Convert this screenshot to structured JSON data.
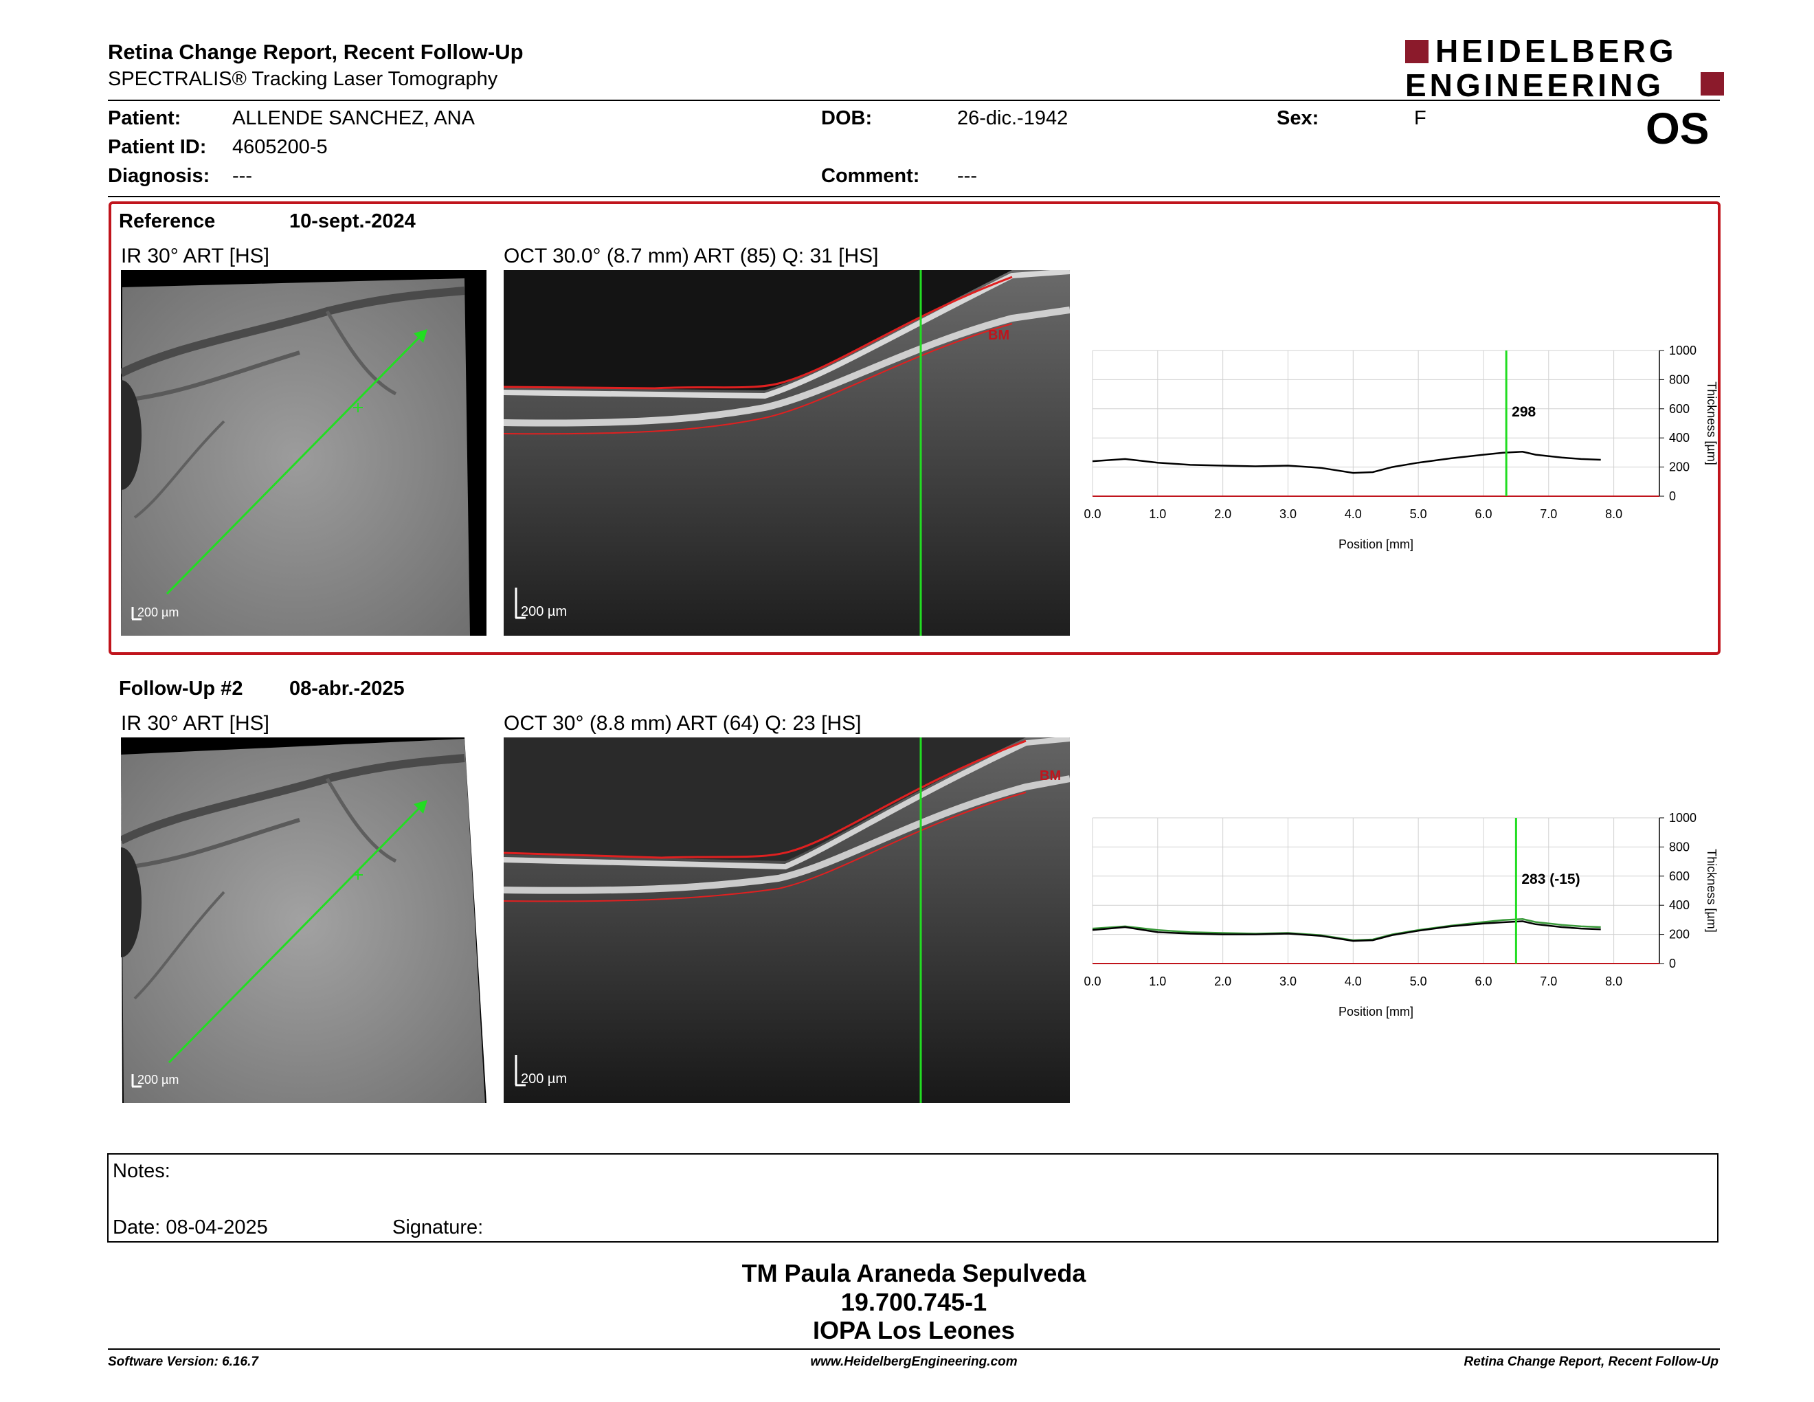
{
  "header": {
    "title": "Retina Change Report, Recent Follow-Up",
    "subtitle": "SPECTRALIS® Tracking Laser Tomography",
    "logo_line1": "HEIDELBERG",
    "logo_line2": "ENGINEERING",
    "eye": "OS"
  },
  "patient": {
    "patient_label": "Patient:",
    "patient_value": "ALLENDE SANCHEZ, ANA",
    "id_label": "Patient ID:",
    "id_value": "4605200-5",
    "diagnosis_label": "Diagnosis:",
    "diagnosis_value": "---",
    "dob_label": "DOB:",
    "dob_value": "26-dic.-1942",
    "comment_label": "Comment:",
    "comment_value": "---",
    "sex_label": "Sex:",
    "sex_value": "F"
  },
  "reference": {
    "label": "Reference",
    "date": "10-sept.-2024",
    "ir_caption": "IR 30° ART [HS]",
    "oct_caption": "OCT 30.0° (8.7 mm) ART (85) Q: 31 [HS]",
    "scale_ir": "200 µm",
    "scale_oct": "200 µm",
    "bm_label": "BM",
    "cursor_value": "298"
  },
  "followup": {
    "label": "Follow-Up #2",
    "date": "08-abr.-2025",
    "ir_caption": "IR 30° ART [HS]",
    "oct_caption": "OCT 30° (8.8 mm) ART (64) Q: 23 [HS]",
    "scale_ir": "200 µm",
    "scale_oct": "200 µm",
    "bm_label": "BM",
    "cursor_value": "283 (-15)"
  },
  "chart_data": [
    {
      "type": "line",
      "xlabel": "Position [mm]",
      "ylabel": "Thickness [µm]",
      "xlim": [
        0,
        8.7
      ],
      "ylim": [
        0,
        1000
      ],
      "x_ticks": [
        "0.0",
        "1.0",
        "2.0",
        "3.0",
        "4.0",
        "5.0",
        "6.0",
        "7.0",
        "8.0"
      ],
      "y_ticks": [
        "0",
        "200",
        "400",
        "600",
        "800",
        "1000"
      ],
      "cursor_x": 6.35,
      "series": [
        {
          "color": "#000000",
          "x": [
            0,
            0.5,
            1.0,
            1.5,
            2.0,
            2.5,
            3.0,
            3.5,
            4.0,
            4.3,
            4.6,
            5.0,
            5.5,
            6.0,
            6.3,
            6.6,
            6.8,
            7.2,
            7.5,
            7.8
          ],
          "values": [
            240,
            255,
            230,
            215,
            210,
            205,
            210,
            195,
            160,
            165,
            200,
            230,
            260,
            285,
            298,
            305,
            285,
            265,
            255,
            250
          ]
        }
      ]
    },
    {
      "type": "line",
      "xlabel": "Position [mm]",
      "ylabel": "Thickness [µm]",
      "xlim": [
        0,
        8.7
      ],
      "ylim": [
        0,
        1000
      ],
      "x_ticks": [
        "0.0",
        "1.0",
        "2.0",
        "3.0",
        "4.0",
        "5.0",
        "6.0",
        "7.0",
        "8.0"
      ],
      "y_ticks": [
        "0",
        "200",
        "400",
        "600",
        "800",
        "1000"
      ],
      "cursor_x": 6.5,
      "series": [
        {
          "color": "#3a9a3a",
          "x": [
            0,
            0.5,
            1.0,
            1.5,
            2.0,
            2.5,
            3.0,
            3.5,
            4.0,
            4.3,
            4.6,
            5.0,
            5.5,
            6.0,
            6.3,
            6.6,
            6.8,
            7.2,
            7.5,
            7.8
          ],
          "values": [
            240,
            255,
            230,
            215,
            210,
            205,
            210,
            195,
            160,
            165,
            200,
            230,
            260,
            285,
            298,
            305,
            285,
            265,
            255,
            250
          ]
        },
        {
          "color": "#000000",
          "x": [
            0,
            0.5,
            1.0,
            1.5,
            2.0,
            2.5,
            3.0,
            3.5,
            4.0,
            4.3,
            4.6,
            5.0,
            5.5,
            6.0,
            6.3,
            6.6,
            6.8,
            7.2,
            7.5,
            7.8
          ],
          "values": [
            230,
            250,
            215,
            205,
            200,
            200,
            205,
            190,
            155,
            160,
            195,
            225,
            255,
            275,
            283,
            290,
            270,
            250,
            240,
            235
          ]
        }
      ]
    }
  ],
  "notes": {
    "notes_label": "Notes:",
    "date_label": "Date: 08-04-2025",
    "signature_label": "Signature:"
  },
  "signature": {
    "name": "TM Paula Araneda Sepulveda",
    "rut": "19.700.745-1",
    "place": "IOPA Los Leones"
  },
  "footer": {
    "left": "Software Version: 6.16.7",
    "center": "www.HeidelbergEngineering.com",
    "right": "Retina Change Report, Recent Follow-Up"
  },
  "colors": {
    "accent_red": "#c0141c",
    "logo_red": "#8b1a2b",
    "green": "#22dd22"
  }
}
